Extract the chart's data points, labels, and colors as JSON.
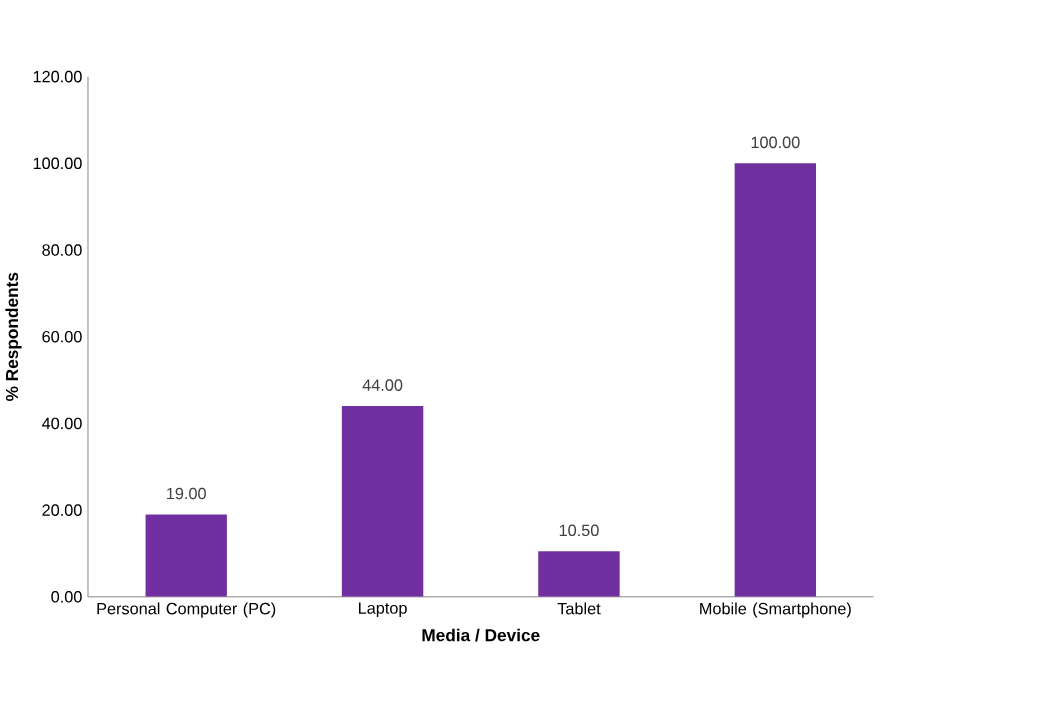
{
  "chart_data": {
    "type": "bar",
    "xlabel": "Media / Device",
    "ylabel": "% Respondents",
    "categories": [
      "Personal Computer (PC)",
      "Laptop",
      "Tablet",
      "Mobile (Smartphone)"
    ],
    "values": [
      19,
      44,
      10.5,
      100
    ],
    "value_labels": [
      "19.00",
      "44.00",
      "10.50",
      "100.00"
    ],
    "color": "#7030a0",
    "ylim": [
      0,
      120
    ],
    "yticks": [
      {
        "value": 0,
        "label": "0.00"
      },
      {
        "value": 20,
        "label": "20.00"
      },
      {
        "value": 40,
        "label": "40.00"
      },
      {
        "value": 60,
        "label": "60.00"
      },
      {
        "value": 80,
        "label": "80.00"
      },
      {
        "value": 100,
        "label": "100.00"
      },
      {
        "value": 120,
        "label": "120.00"
      }
    ]
  }
}
